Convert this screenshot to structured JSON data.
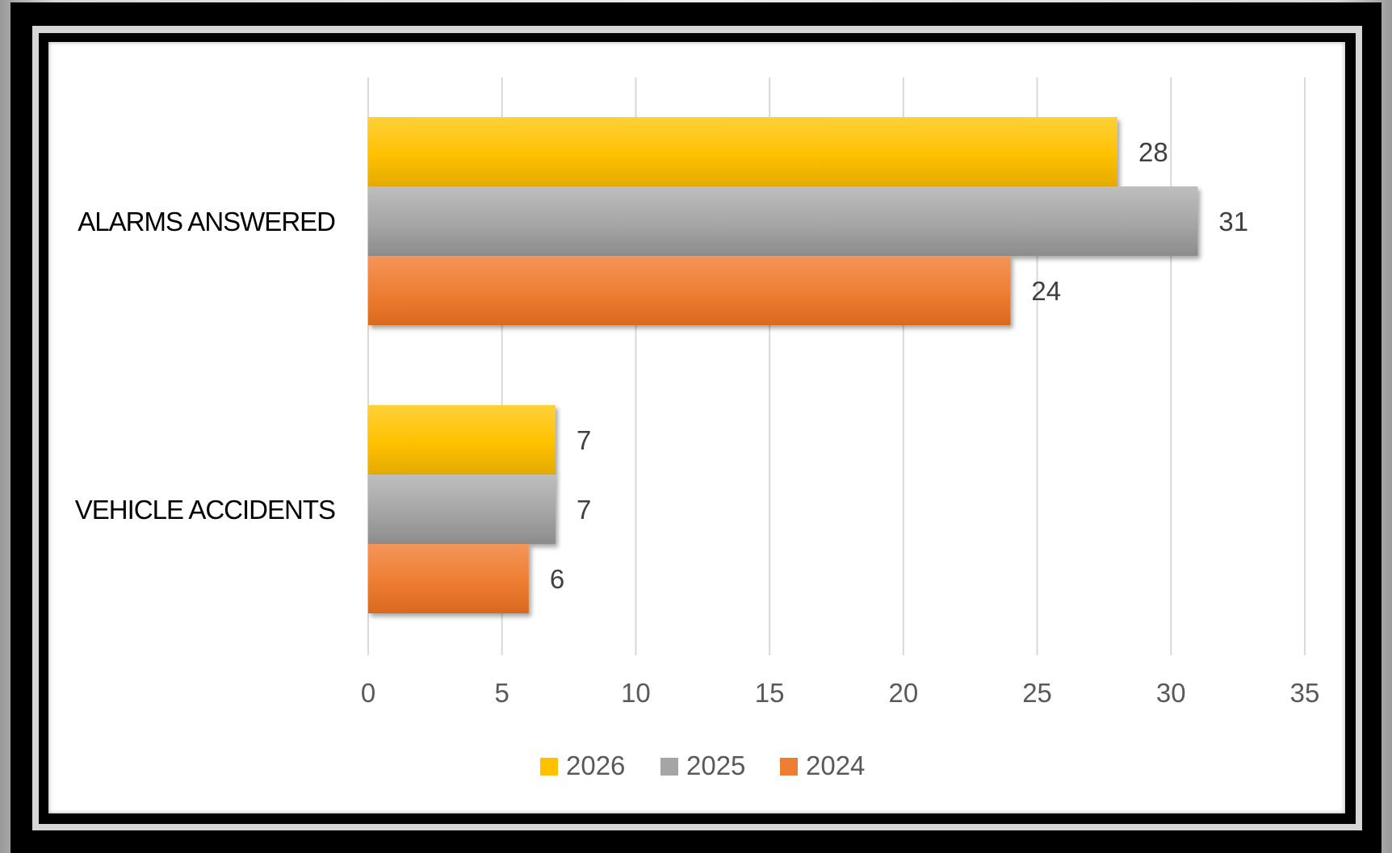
{
  "chart_data": {
    "type": "bar",
    "orientation": "horizontal",
    "categories": [
      "ALARMS ANSWERED",
      "VEHICLE ACCIDENTS"
    ],
    "series": [
      {
        "name": "2026",
        "color": "#FFC000",
        "values": [
          28,
          7
        ]
      },
      {
        "name": "2025",
        "color": "#A5A5A5",
        "values": [
          31,
          7
        ]
      },
      {
        "name": "2024",
        "color": "#ED7D31",
        "values": [
          24,
          6
        ]
      }
    ],
    "xlim": [
      0,
      35
    ],
    "x_ticks": [
      "0",
      "5",
      "10",
      "15",
      "20",
      "25",
      "30",
      "35"
    ],
    "grid": true,
    "legend_position": "bottom",
    "title": "",
    "xlabel": "",
    "ylabel": ""
  }
}
